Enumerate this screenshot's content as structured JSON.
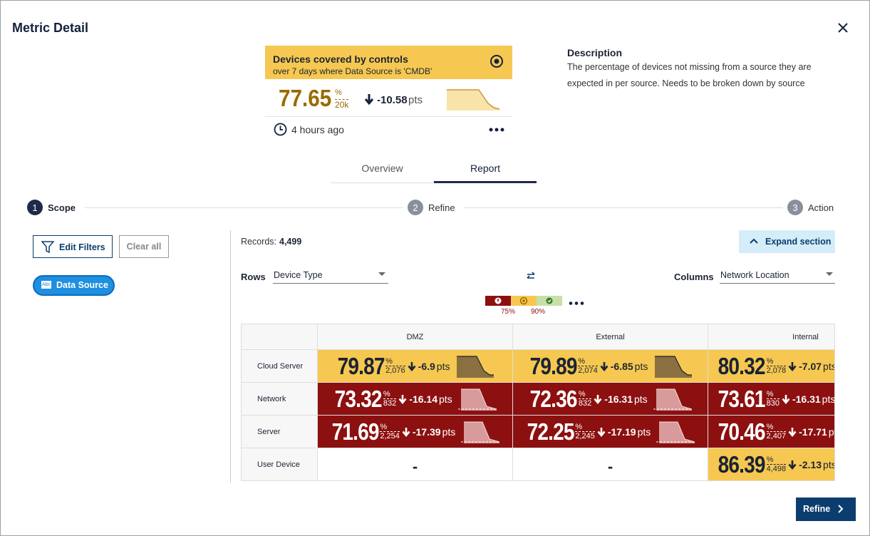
{
  "header": {
    "title": "Metric Detail"
  },
  "metric_card": {
    "title": "Devices covered by controls",
    "subtitle": "over 7 days where Data Source is 'CMDB'",
    "value": "77.65",
    "unit": "%",
    "count": "20k",
    "change": "-10.58",
    "change_unit": "pts",
    "updated": "4 hours ago"
  },
  "description": {
    "title": "Description",
    "text": "The percentage of devices not missing from a source they are expected in per source. Needs to be broken down by source"
  },
  "tabs": [
    "Overview",
    "Report"
  ],
  "steps": [
    {
      "number": "1",
      "label": "Scope"
    },
    {
      "number": "2",
      "label": "Refine"
    },
    {
      "number": "3",
      "label": "Action"
    }
  ],
  "filters": {
    "edit": "Edit Filters",
    "clear": "Clear all",
    "chip": "Data Source"
  },
  "records": {
    "label": "Records:",
    "value": "4,499"
  },
  "expand": "Expand section",
  "pivot": {
    "rows_label": "Rows",
    "rows_value": "Device Type",
    "columns_label": "Columns",
    "columns_value": "Network Location"
  },
  "thresholds": [
    "75%",
    "90%"
  ],
  "table": {
    "unit": "%",
    "change_unit": "pts",
    "columns": [
      "DMZ",
      "External",
      "Internal"
    ],
    "rows": [
      {
        "label": "Cloud Server",
        "cells": [
          {
            "value": "79.87",
            "count": "2,076",
            "change": "-6.9",
            "color": "#f6c851"
          },
          {
            "value": "79.89",
            "count": "2,074",
            "change": "-6.85",
            "color": "#f6c851"
          },
          {
            "value": "80.32",
            "count": "2,078",
            "change": "-7.07",
            "color": "#f6c851"
          }
        ]
      },
      {
        "label": "Network",
        "cells": [
          {
            "value": "73.32",
            "count": "832",
            "change": "-16.14",
            "color": "#8c1010"
          },
          {
            "value": "72.36",
            "count": "832",
            "change": "-16.31",
            "color": "#8c1010"
          },
          {
            "value": "73.61",
            "count": "830",
            "change": "-16.31",
            "color": "#8c1010"
          }
        ]
      },
      {
        "label": "Server",
        "cells": [
          {
            "value": "71.69",
            "count": "2,254",
            "change": "-17.39",
            "color": "#8c1010"
          },
          {
            "value": "72.25",
            "count": "2,245",
            "change": "-17.19",
            "color": "#8c1010"
          },
          {
            "value": "70.46",
            "count": "2,407",
            "change": "-17.71",
            "color": "#8c1010"
          }
        ]
      },
      {
        "label": "User Device",
        "cells": [
          {
            "value": "-"
          },
          {
            "value": "-"
          },
          {
            "value": "86.39",
            "count": "4,498",
            "change": "-2.13",
            "color": "#f6c851"
          }
        ]
      }
    ]
  },
  "footer": {
    "button": "Refine"
  }
}
